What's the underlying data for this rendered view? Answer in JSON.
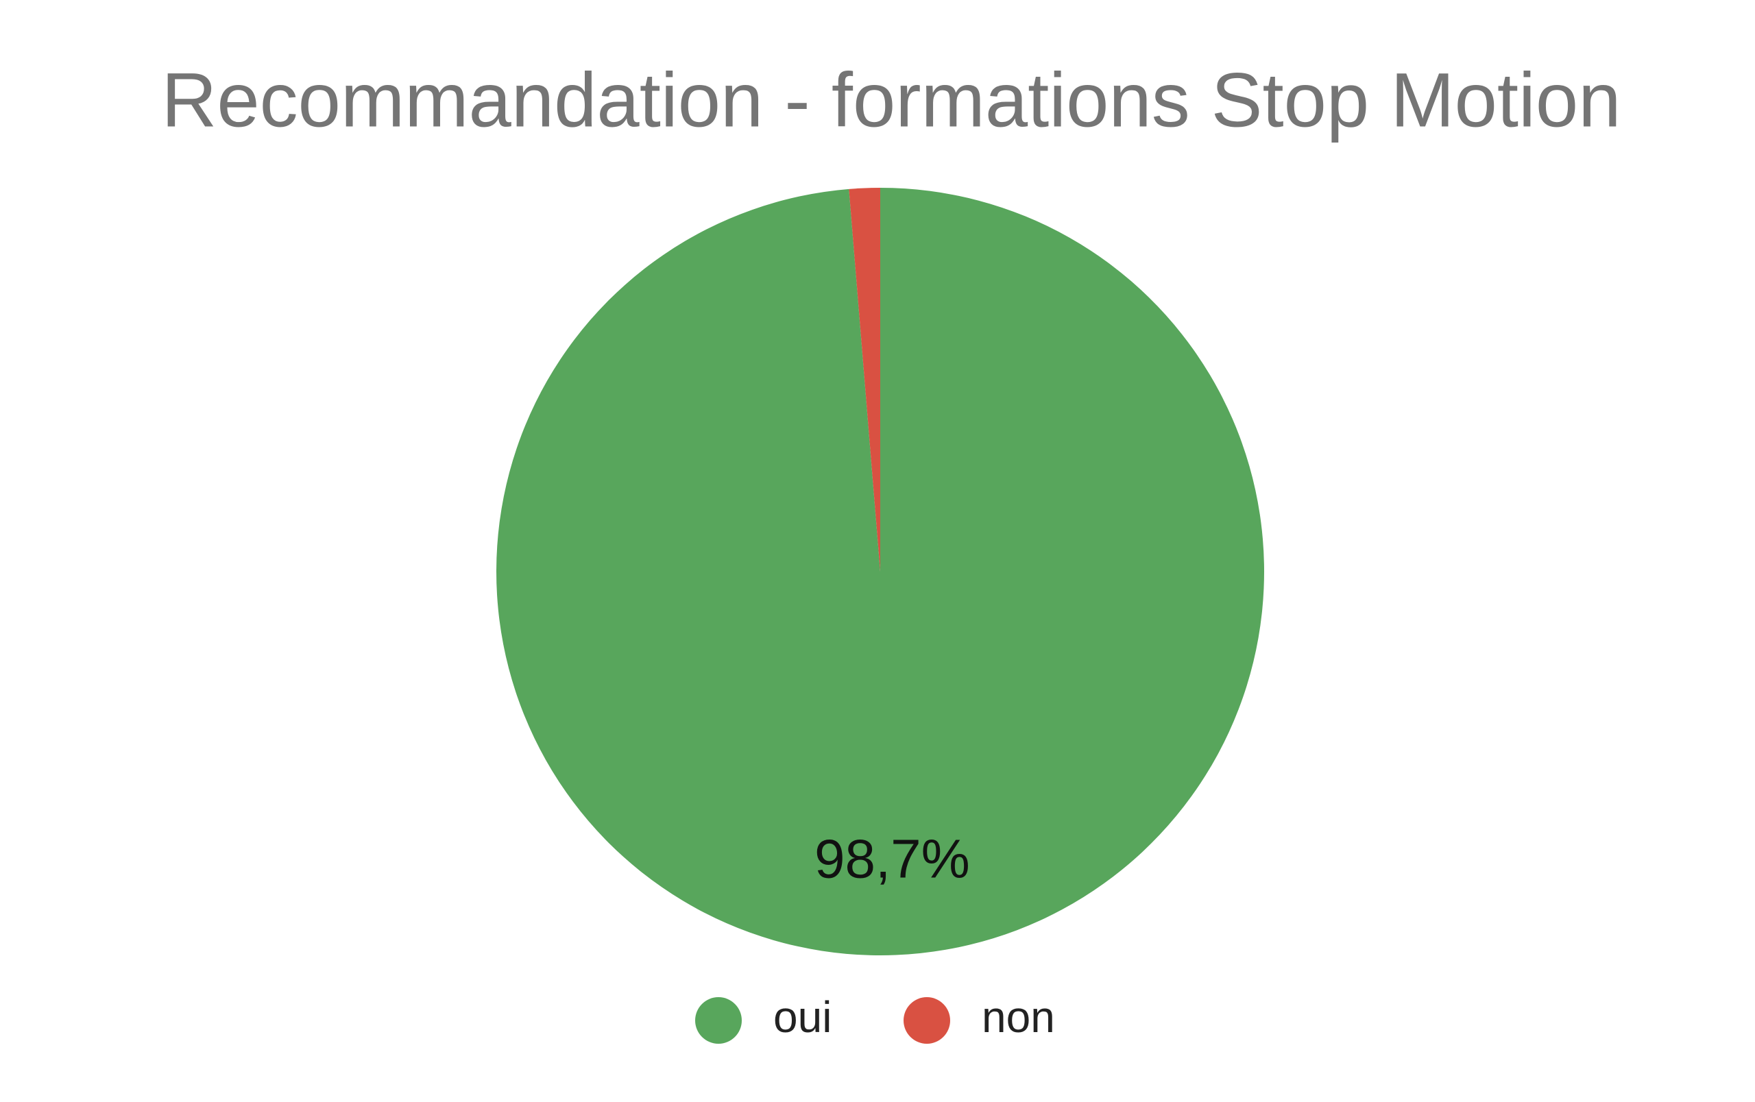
{
  "chart_data": {
    "type": "pie",
    "title": "Recommandation - formations Stop Motion",
    "categories": [
      "oui",
      "non"
    ],
    "values": [
      98.7,
      1.3
    ],
    "value_labels": [
      "98,7%",
      null
    ],
    "colors": [
      "#58a65c",
      "#d95142"
    ],
    "legend": "bottom"
  }
}
